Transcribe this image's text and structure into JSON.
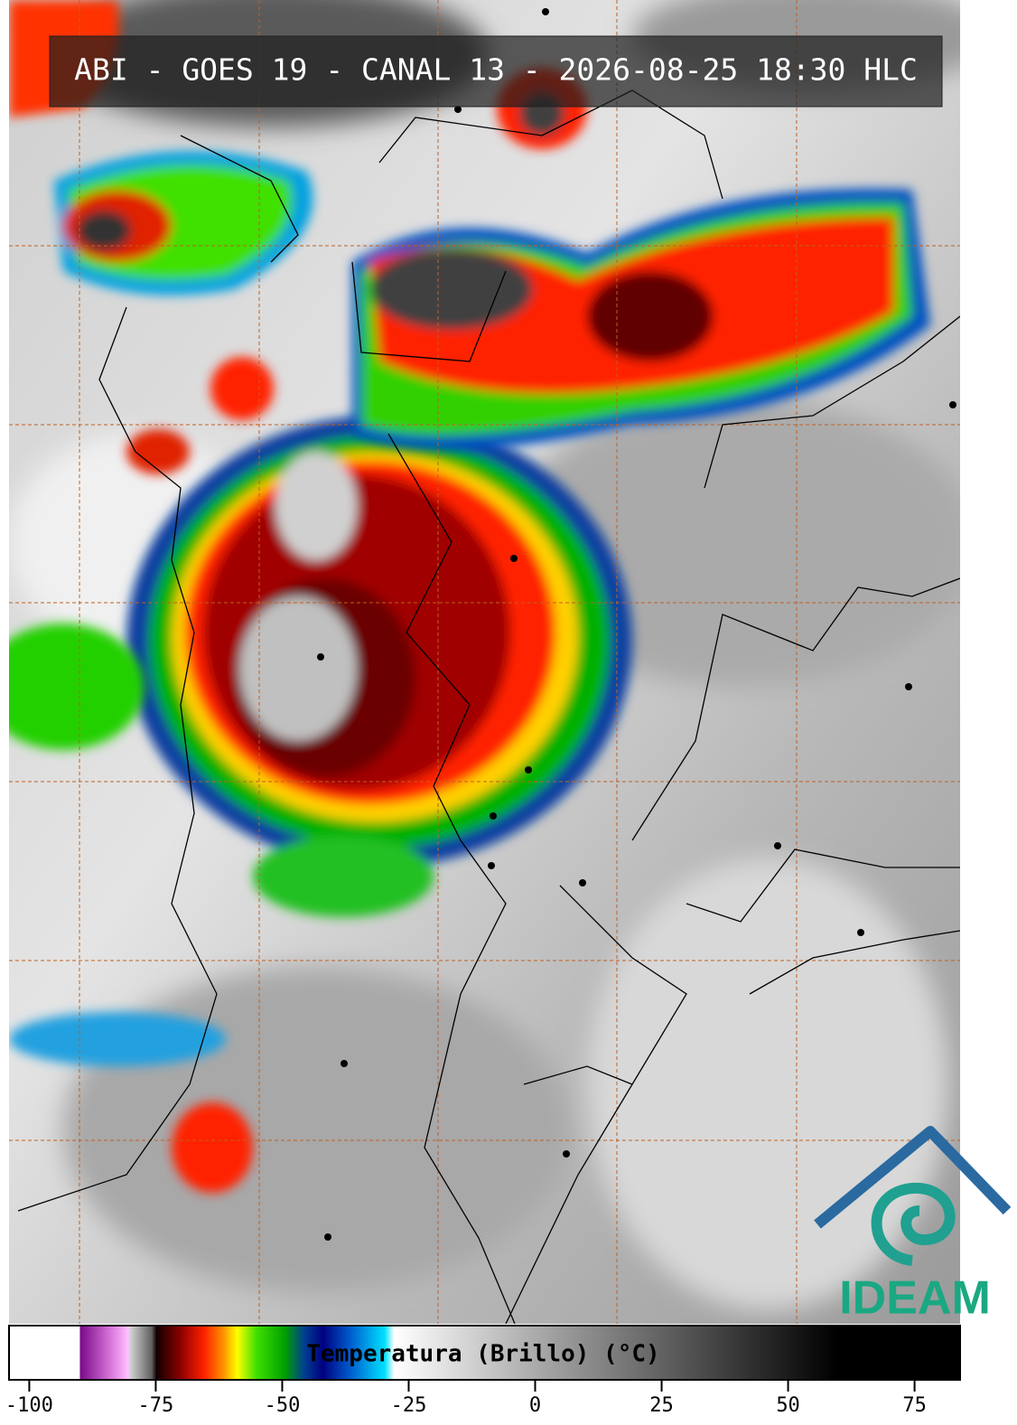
{
  "header": {
    "title": "ABI - GOES 19 - CANAL 13 - 2026-08-25 18:30 HLC"
  },
  "colorbar": {
    "label": "Temperatura (Brillo) (°C)",
    "range": [
      -104,
      84
    ],
    "ticks": [
      -100,
      -75,
      -50,
      -25,
      0,
      25,
      50,
      75
    ]
  },
  "logo": {
    "text": "IDEAM"
  }
}
